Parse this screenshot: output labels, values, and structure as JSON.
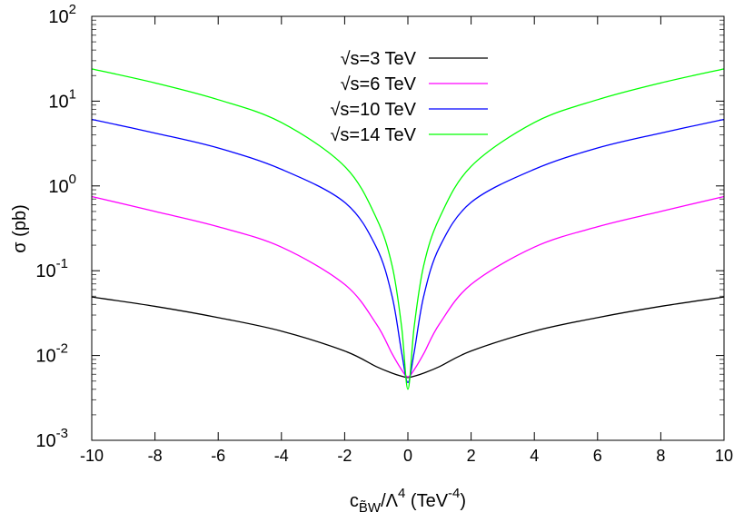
{
  "chart_data": {
    "type": "line",
    "title": "",
    "xlabel": {
      "main": "c",
      "sub": "B̃W",
      "mid": "/Λ",
      "sup": "4",
      "unit_open": " (TeV",
      "unit_sup": "-4",
      "unit_close": ")"
    },
    "ylabel": "σ (pb)",
    "xlim": [
      -10,
      10
    ],
    "ylim": [
      0.001,
      100
    ],
    "yscale": "log",
    "xticks": [
      "-10",
      "-8",
      "-6",
      "-4",
      "-2",
      "0",
      "2",
      "4",
      "6",
      "8",
      "10"
    ],
    "yticks": [
      {
        "base": "10",
        "exp": "-3"
      },
      {
        "base": "10",
        "exp": "-2"
      },
      {
        "base": "10",
        "exp": "-1"
      },
      {
        "base": "10",
        "exp": "0"
      },
      {
        "base": "10",
        "exp": "1"
      },
      {
        "base": "10",
        "exp": "2"
      }
    ],
    "grid": false,
    "legend_position": "top-center",
    "x": [
      -10,
      -8,
      -6,
      -4,
      -2,
      -1,
      -0.5,
      -0.2,
      0,
      0.2,
      0.5,
      1,
      2,
      4,
      6,
      8,
      10
    ],
    "series": [
      {
        "name": "√s=3 TeV",
        "color": "#000000",
        "values": [
          0.049,
          0.038,
          0.028,
          0.0194,
          0.0113,
          0.0074,
          0.0062,
          0.0057,
          0.0055,
          0.0057,
          0.0062,
          0.0074,
          0.0113,
          0.0194,
          0.028,
          0.038,
          0.049
        ]
      },
      {
        "name": "√s=6 TeV",
        "color": "#ff00ff",
        "values": [
          0.75,
          0.5,
          0.33,
          0.19,
          0.069,
          0.0236,
          0.0105,
          0.0068,
          0.0056,
          0.0068,
          0.0105,
          0.0236,
          0.069,
          0.19,
          0.33,
          0.5,
          0.75
        ]
      },
      {
        "name": "√s=10 TeV",
        "color": "#0000ff",
        "values": [
          6.1,
          4.2,
          2.8,
          1.57,
          0.64,
          0.19,
          0.05,
          0.011,
          0.0048,
          0.011,
          0.05,
          0.19,
          0.64,
          1.57,
          2.8,
          4.2,
          6.1
        ]
      },
      {
        "name": "√s=14 TeV",
        "color": "#00ff00",
        "values": [
          24,
          16.4,
          10.4,
          5.6,
          1.7,
          0.42,
          0.115,
          0.022,
          0.004,
          0.022,
          0.115,
          0.42,
          1.7,
          5.6,
          10.4,
          16.4,
          24
        ]
      }
    ]
  }
}
